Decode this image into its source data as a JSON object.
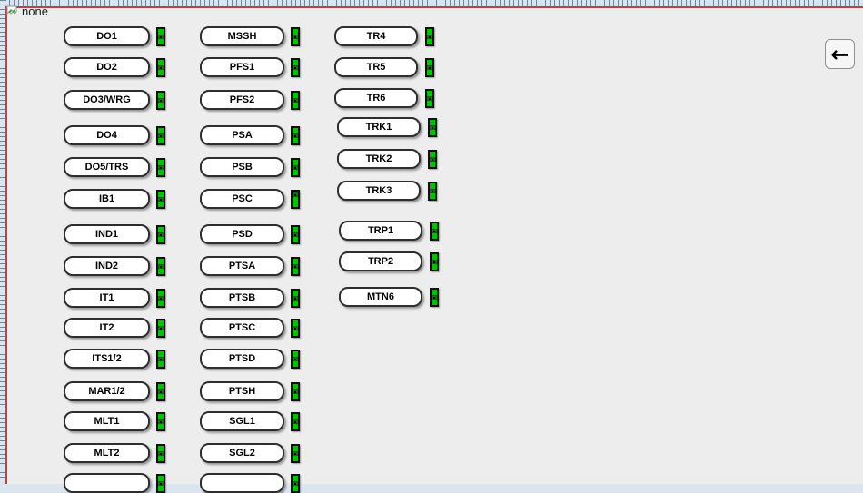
{
  "missing_image": {
    "label": "none"
  },
  "back_button": {
    "symbol": "←"
  },
  "colors": {
    "frame_border": "#c04040",
    "page_background": "#ededed",
    "indicator_on": "#00c300",
    "button_face": "#ffffff"
  },
  "columns": [
    {
      "id": "column-1",
      "items": [
        {
          "label": "DO1",
          "indicator": {
            "state": "on",
            "handle": "middle"
          }
        },
        {
          "label": "DO2",
          "indicator": {
            "state": "on",
            "handle": "middle"
          }
        },
        {
          "label": "DO3/WRG",
          "indicator": {
            "state": "on",
            "handle": "middle"
          }
        },
        {
          "label": "DO4",
          "indicator": {
            "state": "on",
            "handle": "middle"
          }
        },
        {
          "label": "DO5/TRS",
          "indicator": {
            "state": "on",
            "handle": "middle"
          }
        },
        {
          "label": "IB1",
          "indicator": {
            "state": "on",
            "handle": "middle"
          }
        },
        {
          "label": "IND1",
          "indicator": {
            "state": "on",
            "handle": "middle"
          }
        },
        {
          "label": "IND2",
          "indicator": {
            "state": "on",
            "handle": "middle"
          }
        },
        {
          "label": "IT1",
          "indicator": {
            "state": "on",
            "handle": "middle"
          }
        },
        {
          "label": "IT2",
          "indicator": {
            "state": "on",
            "handle": "middle"
          }
        },
        {
          "label": "ITS1/2",
          "indicator": {
            "state": "on",
            "handle": "middle"
          }
        },
        {
          "label": "MAR1/2",
          "indicator": {
            "state": "on",
            "handle": "middle"
          }
        },
        {
          "label": "MLT1",
          "indicator": {
            "state": "on",
            "handle": "middle"
          }
        },
        {
          "label": "MLT2",
          "indicator": {
            "state": "on",
            "handle": "middle"
          }
        },
        {
          "label": "",
          "cut_off": true,
          "indicator": {
            "state": "on",
            "handle": "middle"
          }
        }
      ]
    },
    {
      "id": "column-2",
      "items": [
        {
          "label": "MSSH",
          "indicator": {
            "state": "on",
            "handle": "middle"
          }
        },
        {
          "label": "PFS1",
          "indicator": {
            "state": "on",
            "handle": "middle"
          }
        },
        {
          "label": "PFS2",
          "indicator": {
            "state": "on",
            "handle": "middle"
          }
        },
        {
          "label": "PSA",
          "indicator": {
            "state": "on",
            "handle": "middle"
          }
        },
        {
          "label": "PSB",
          "indicator": {
            "state": "on",
            "handle": "middle"
          }
        },
        {
          "label": "PSC",
          "indicator": {
            "state": "on",
            "handle": "top"
          }
        },
        {
          "label": "PSD",
          "indicator": {
            "state": "on",
            "handle": "middle"
          }
        },
        {
          "label": "PTSA",
          "indicator": {
            "state": "on",
            "handle": "middle"
          }
        },
        {
          "label": "PTSB",
          "indicator": {
            "state": "on",
            "handle": "middle"
          }
        },
        {
          "label": "PTSC",
          "indicator": {
            "state": "on",
            "handle": "middle"
          }
        },
        {
          "label": "PTSD",
          "indicator": {
            "state": "on",
            "handle": "middle"
          }
        },
        {
          "label": "PTSH",
          "indicator": {
            "state": "on",
            "handle": "middle"
          }
        },
        {
          "label": "SGL1",
          "indicator": {
            "state": "on",
            "handle": "middle"
          }
        },
        {
          "label": "SGL2",
          "indicator": {
            "state": "on",
            "handle": "middle"
          }
        },
        {
          "label": "",
          "cut_off": true,
          "indicator": {
            "state": "on",
            "handle": "middle"
          }
        }
      ]
    },
    {
      "id": "column-3",
      "items": [
        {
          "label": "TR4",
          "indicator": {
            "state": "on",
            "handle": "middle"
          }
        },
        {
          "label": "TR5",
          "indicator": {
            "state": "on",
            "handle": "middle"
          }
        },
        {
          "label": "TR6",
          "indicator": {
            "state": "on",
            "handle": "middle"
          }
        },
        {
          "label": "TRK1",
          "indicator": {
            "state": "on",
            "handle": "middle"
          }
        },
        {
          "label": "TRK2",
          "indicator": {
            "state": "on",
            "handle": "middle"
          }
        },
        {
          "label": "TRK3",
          "indicator": {
            "state": "on",
            "handle": "middle"
          }
        },
        {
          "label": "TRP1",
          "indicator": {
            "state": "on",
            "handle": "middle"
          }
        },
        {
          "label": "TRP2",
          "indicator": {
            "state": "on",
            "handle": "middle"
          }
        },
        {
          "label": "MTN6",
          "indicator": {
            "state": "on",
            "handle": "middle"
          }
        }
      ]
    }
  ]
}
